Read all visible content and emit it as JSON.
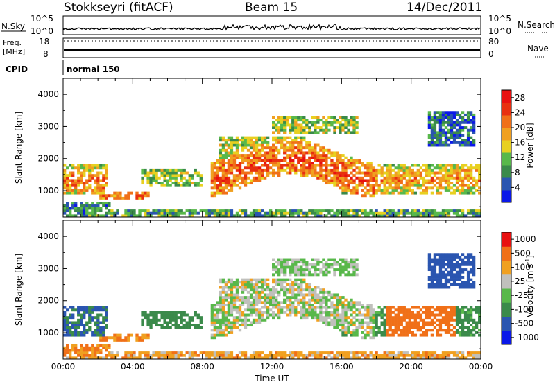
{
  "header": {
    "station": "Stokkseyri (fitACF)",
    "beam": "Beam 15",
    "date": "14/Dec/2011"
  },
  "strip": {
    "nsky_label": "N.Sky",
    "nsearch_label": "N.Search",
    "freq_label": "Freq.",
    "freq_unit": "[MHz]",
    "nave_label": "Nave",
    "cpid_label": "CPID",
    "cpid_value": "normal 150",
    "noise_ticks": [
      "10^5",
      "10^0"
    ],
    "freq_ticks": [
      "18",
      "8"
    ],
    "nave_ticks": [
      "80",
      "0"
    ]
  },
  "colors": {
    "power": [
      "#0a18e8",
      "#2a55b0",
      "#3a8a4a",
      "#58b84a",
      "#e8d020",
      "#f0a020",
      "#f07018",
      "#e83010",
      "#e81010"
    ],
    "velocity": [
      "#0a18e8",
      "#2a55b0",
      "#3a8a4a",
      "#58b84a",
      "#c0c0bc",
      "#f0a020",
      "#f07018",
      "#e81010"
    ]
  },
  "chart_data": [
    {
      "type": "heatmap",
      "title": "Power",
      "xlabel": "Time UT",
      "ylabel": "Slant Range [km]",
      "x_ticks": [
        "00:00",
        "04:00",
        "08:00",
        "12:00",
        "16:00",
        "20:00",
        "00:00"
      ],
      "y_ticks": [
        1000,
        2000,
        3000,
        4000
      ],
      "ylim": [
        180,
        4500
      ],
      "colorbar_label": "Power [dB]",
      "colorbar_ticks": [
        4,
        8,
        12,
        16,
        20,
        24,
        28
      ],
      "colorbar_range": [
        0,
        30
      ]
    },
    {
      "type": "heatmap",
      "title": "Velocity",
      "xlabel": "Time UT",
      "ylabel": "Slant Range [km]",
      "x_ticks": [
        "00:00",
        "04:00",
        "08:00",
        "12:00",
        "16:00",
        "20:00",
        "00:00"
      ],
      "y_ticks": [
        1000,
        2000,
        3000,
        4000
      ],
      "ylim": [
        180,
        4500
      ],
      "colorbar_label": "Velocity [m s",
      "colorbar_exp": "-1",
      "colorbar_ticks": [
        1000,
        500,
        100,
        25,
        -25,
        -100,
        -500,
        -1000
      ]
    }
  ]
}
